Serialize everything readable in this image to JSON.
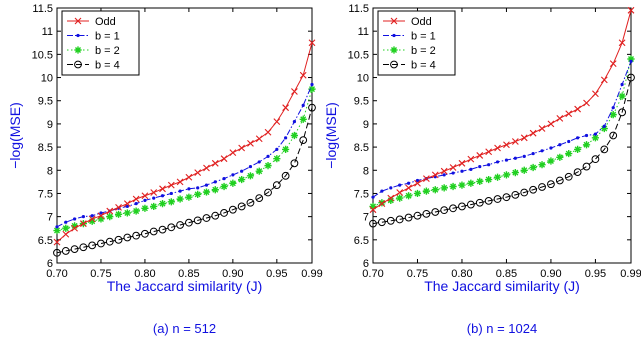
{
  "chart_data": [
    {
      "type": "line",
      "title": "",
      "caption": "(a) n = 512",
      "xlabel": "The Jaccard similarity (J)",
      "ylabel": "−log(MSE)",
      "xlim": [
        0.7,
        0.99
      ],
      "ylim": [
        6,
        11.5
      ],
      "xticks": [
        0.7,
        0.75,
        0.8,
        0.85,
        0.9,
        0.95,
        0.99
      ],
      "xtick_labels": [
        "0.70",
        "0.75",
        "0.80",
        "0.85",
        "0.90",
        "0.95",
        "0.99"
      ],
      "yticks": [
        6,
        6.5,
        7,
        7.5,
        8,
        8.5,
        9,
        9.5,
        10,
        10.5,
        11,
        11.5
      ],
      "ytick_labels": [
        "6",
        "6.5",
        "7",
        "7.5",
        "8",
        "8.5",
        "9",
        "9.5",
        "10",
        "10.5",
        "11",
        "11.5"
      ],
      "grid": false,
      "legend": "top-left",
      "x": [
        0.7,
        0.71,
        0.72,
        0.73,
        0.74,
        0.75,
        0.76,
        0.77,
        0.78,
        0.79,
        0.8,
        0.81,
        0.82,
        0.83,
        0.84,
        0.85,
        0.86,
        0.87,
        0.88,
        0.89,
        0.9,
        0.91,
        0.92,
        0.93,
        0.94,
        0.95,
        0.96,
        0.97,
        0.98,
        0.99
      ],
      "series": [
        {
          "name": "Odd",
          "color": "#e02020",
          "marker": "x",
          "dash": "solid",
          "values": [
            6.45,
            6.62,
            6.75,
            6.85,
            6.95,
            7.02,
            7.12,
            7.2,
            7.28,
            7.38,
            7.45,
            7.52,
            7.6,
            7.68,
            7.75,
            7.85,
            7.95,
            8.05,
            8.15,
            8.25,
            8.38,
            8.48,
            8.58,
            8.68,
            8.82,
            9.05,
            9.35,
            9.7,
            10.05,
            10.75
          ]
        },
        {
          "name": "b = 1",
          "color": "#1010e0",
          "marker": "dot",
          "dash": "dashdot",
          "values": [
            6.78,
            6.88,
            6.95,
            7.0,
            7.02,
            7.08,
            7.12,
            7.18,
            7.22,
            7.28,
            7.35,
            7.4,
            7.45,
            7.5,
            7.55,
            7.6,
            7.62,
            7.68,
            7.75,
            7.82,
            7.9,
            7.98,
            8.08,
            8.18,
            8.3,
            8.45,
            8.7,
            9.05,
            9.4,
            9.85
          ]
        },
        {
          "name": "b = 2",
          "color": "#20d020",
          "marker": "star",
          "dash": "dotted",
          "values": [
            6.7,
            6.75,
            6.8,
            6.85,
            6.9,
            6.95,
            7.0,
            7.05,
            7.08,
            7.12,
            7.18,
            7.22,
            7.28,
            7.32,
            7.38,
            7.42,
            7.48,
            7.53,
            7.58,
            7.65,
            7.72,
            7.8,
            7.88,
            7.98,
            8.1,
            8.25,
            8.45,
            8.75,
            9.1,
            9.75
          ]
        },
        {
          "name": "b = 4",
          "color": "#000000",
          "marker": "circle",
          "dash": "dashed",
          "values": [
            6.22,
            6.26,
            6.3,
            6.34,
            6.38,
            6.42,
            6.46,
            6.5,
            6.55,
            6.59,
            6.63,
            6.68,
            6.72,
            6.77,
            6.82,
            6.87,
            6.92,
            6.97,
            7.02,
            7.08,
            7.15,
            7.22,
            7.3,
            7.4,
            7.52,
            7.68,
            7.88,
            8.15,
            8.65,
            9.35
          ]
        }
      ]
    },
    {
      "type": "line",
      "title": "",
      "caption": "(b) n = 1024",
      "xlabel": "The Jaccard similarity (J)",
      "ylabel": "−log(MSE)",
      "xlim": [
        0.7,
        0.99
      ],
      "ylim": [
        6,
        11.5
      ],
      "xticks": [
        0.7,
        0.75,
        0.8,
        0.85,
        0.9,
        0.95,
        0.99
      ],
      "xtick_labels": [
        "0.70",
        "0.75",
        "0.80",
        "0.85",
        "0.90",
        "0.95",
        "0.99"
      ],
      "yticks": [
        6,
        6.5,
        7,
        7.5,
        8,
        8.5,
        9,
        9.5,
        10,
        10.5,
        11,
        11.5
      ],
      "ytick_labels": [
        "6",
        "6.5",
        "7",
        "7.5",
        "8",
        "8.5",
        "9",
        "9.5",
        "10",
        "10.5",
        "11",
        "11.5"
      ],
      "grid": false,
      "legend": "top-left",
      "x": [
        0.7,
        0.71,
        0.72,
        0.73,
        0.74,
        0.75,
        0.76,
        0.77,
        0.78,
        0.79,
        0.8,
        0.81,
        0.82,
        0.83,
        0.84,
        0.85,
        0.86,
        0.87,
        0.88,
        0.89,
        0.9,
        0.91,
        0.92,
        0.93,
        0.94,
        0.95,
        0.96,
        0.97,
        0.98,
        0.99
      ],
      "series": [
        {
          "name": "Odd",
          "color": "#e02020",
          "marker": "x",
          "dash": "solid",
          "values": [
            7.15,
            7.28,
            7.4,
            7.52,
            7.62,
            7.72,
            7.82,
            7.9,
            7.98,
            8.06,
            8.15,
            8.24,
            8.32,
            8.4,
            8.48,
            8.55,
            8.62,
            8.7,
            8.8,
            8.9,
            9.0,
            9.12,
            9.22,
            9.32,
            9.45,
            9.65,
            9.95,
            10.3,
            10.75,
            11.45
          ]
        },
        {
          "name": "b = 1",
          "color": "#1010e0",
          "marker": "dot",
          "dash": "dashdot",
          "values": [
            7.42,
            7.55,
            7.62,
            7.68,
            7.72,
            7.78,
            7.82,
            7.86,
            7.9,
            7.94,
            7.98,
            8.02,
            8.08,
            8.12,
            8.18,
            8.22,
            8.26,
            8.3,
            8.36,
            8.42,
            8.48,
            8.55,
            8.62,
            8.7,
            8.75,
            8.78,
            8.95,
            9.35,
            9.85,
            10.35
          ]
        },
        {
          "name": "b = 2",
          "color": "#20d020",
          "marker": "star",
          "dash": "dotted",
          "values": [
            7.22,
            7.3,
            7.35,
            7.4,
            7.45,
            7.5,
            7.55,
            7.58,
            7.62,
            7.65,
            7.68,
            7.72,
            7.76,
            7.8,
            7.85,
            7.9,
            7.95,
            8.0,
            8.06,
            8.12,
            8.2,
            8.28,
            8.36,
            8.45,
            8.55,
            8.7,
            8.9,
            9.2,
            9.6,
            10.4
          ]
        },
        {
          "name": "b = 4",
          "color": "#000000",
          "marker": "circle",
          "dash": "dashed",
          "values": [
            6.85,
            6.88,
            6.91,
            6.94,
            6.98,
            7.02,
            7.06,
            7.1,
            7.14,
            7.18,
            7.22,
            7.26,
            7.3,
            7.34,
            7.38,
            7.42,
            7.47,
            7.52,
            7.58,
            7.64,
            7.7,
            7.78,
            7.86,
            7.96,
            8.08,
            8.24,
            8.45,
            8.75,
            9.25,
            10.0
          ]
        }
      ]
    }
  ]
}
